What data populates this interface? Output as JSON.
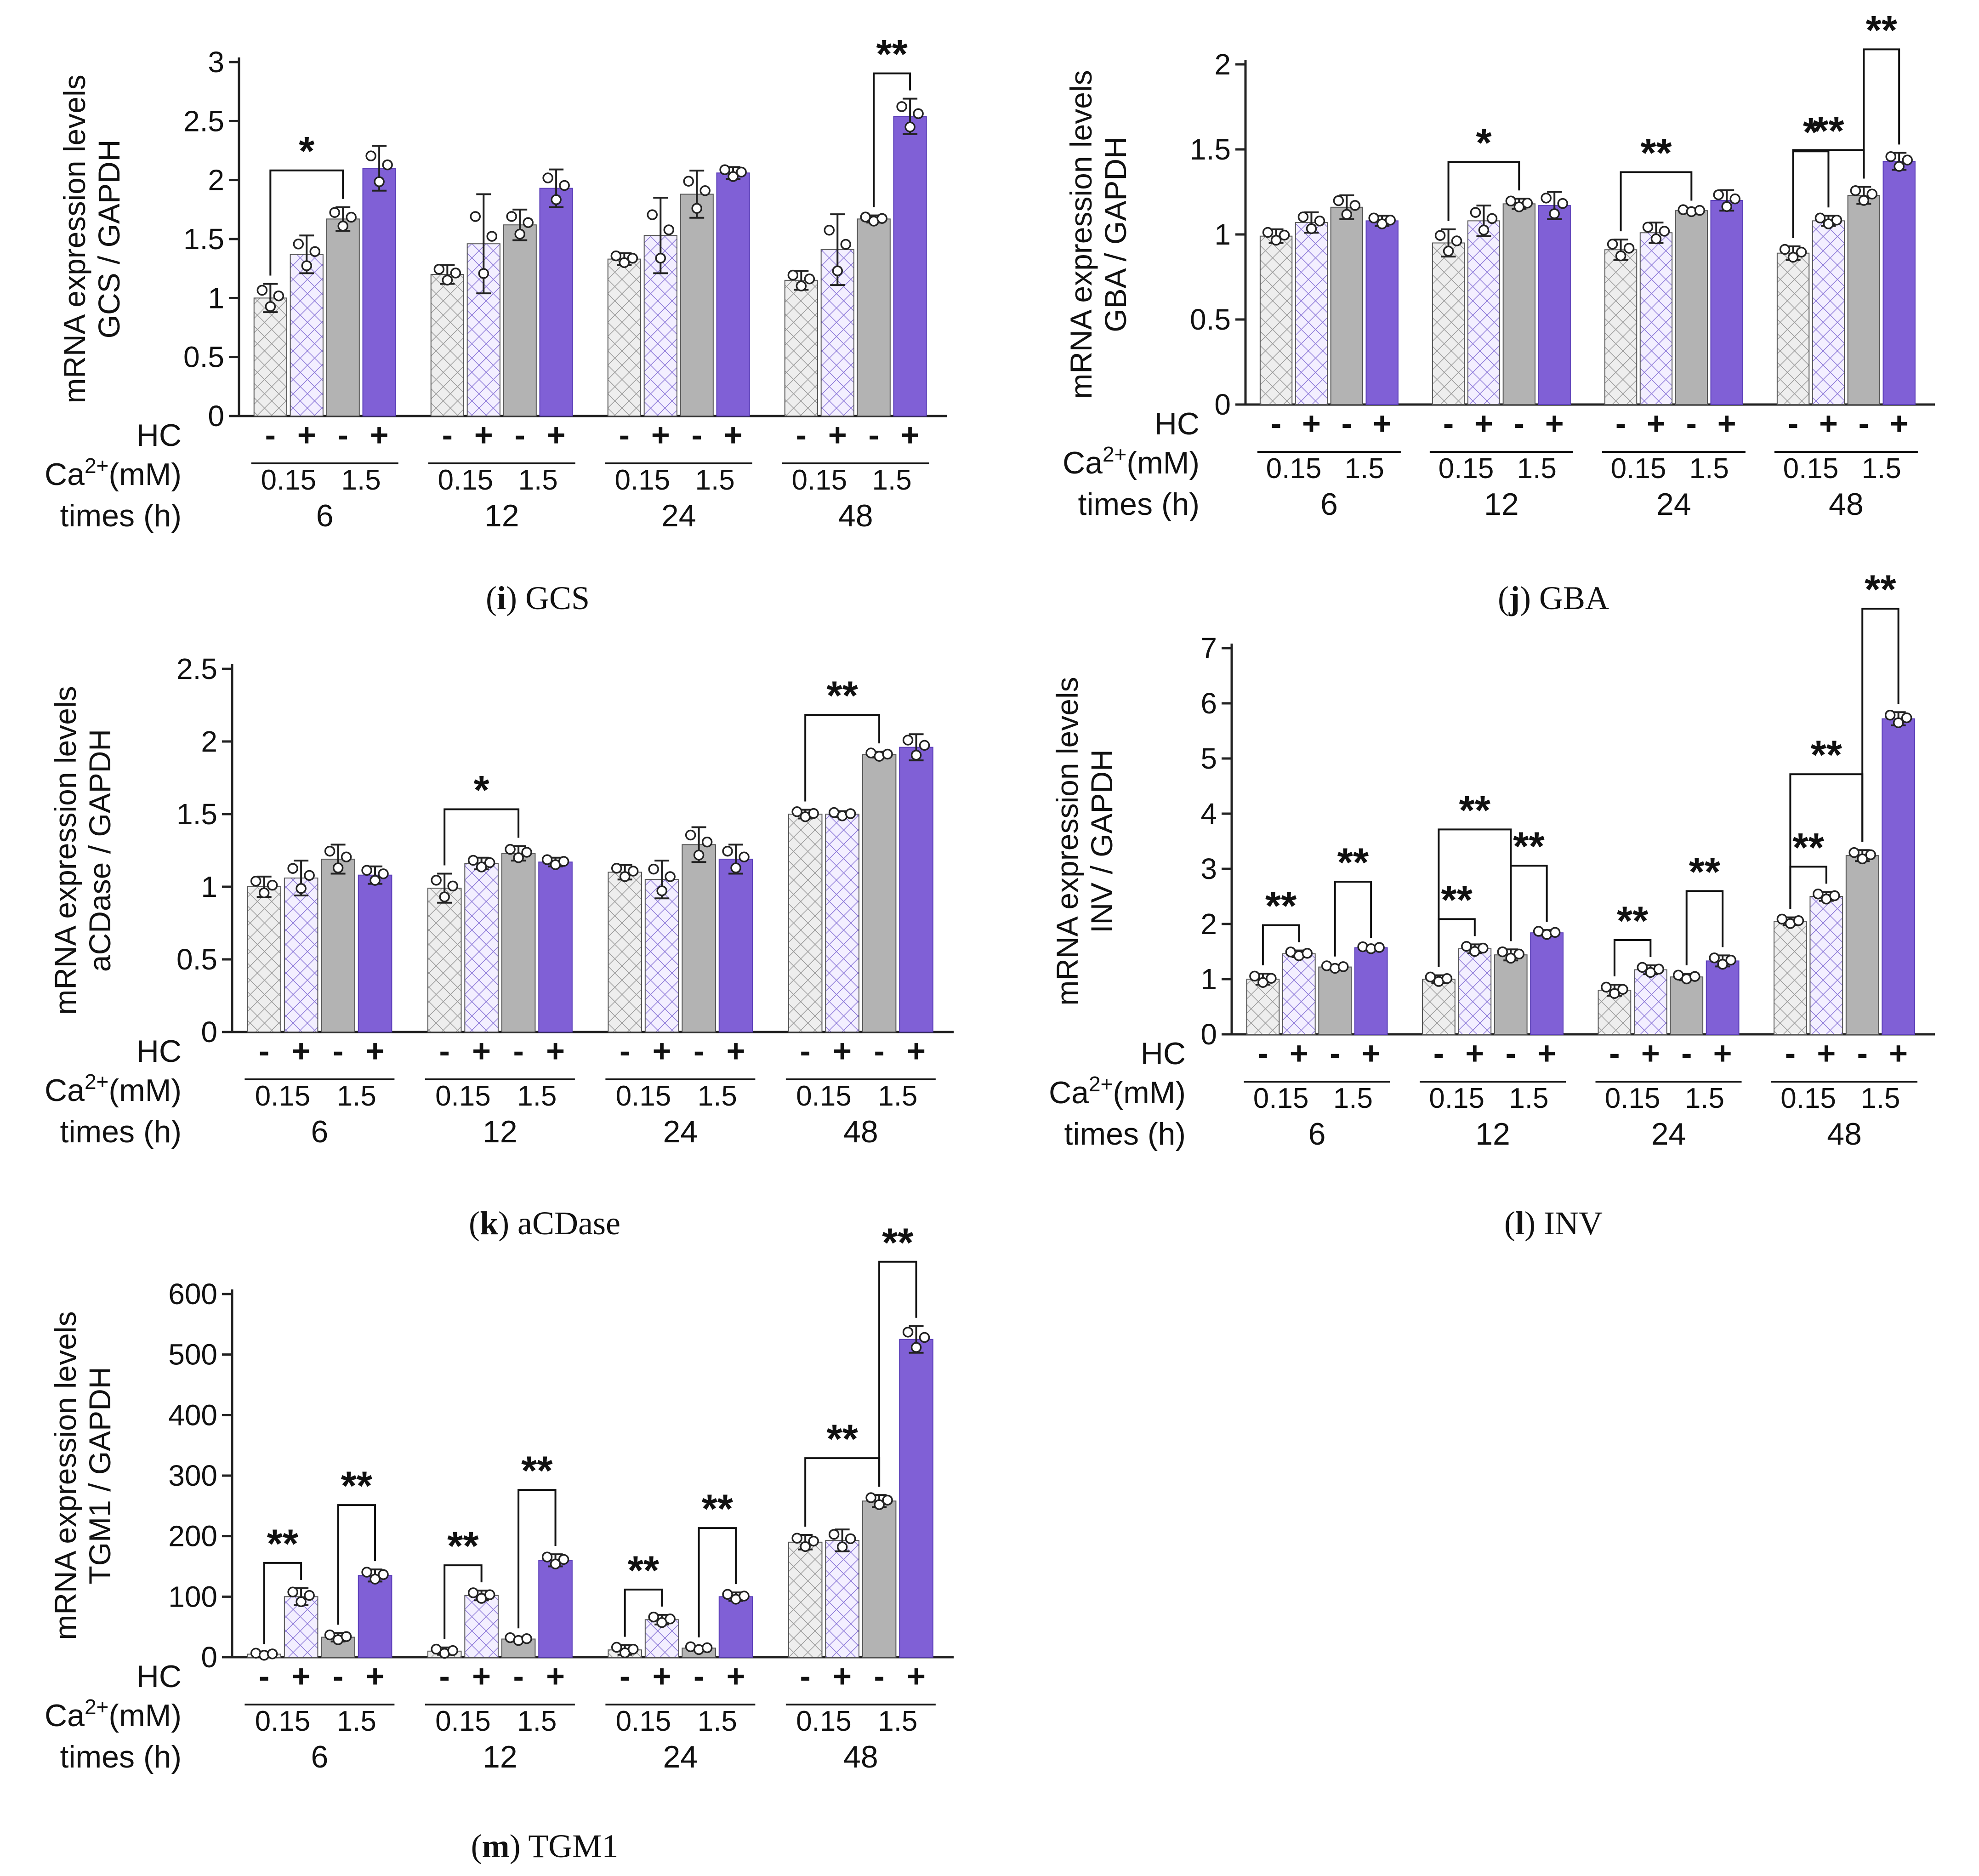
{
  "colors": {
    "hc_minus_low": "#e8e8e8",
    "hc_plus_low": "#ece6fb",
    "hc_minus_high": "#b3b3b3",
    "hc_plus_high": "#8060d6",
    "axis": "#222222",
    "hatch_low": "#9a9a9a",
    "hatch_plus": "#8c78d8"
  },
  "row_labels": {
    "hc": "HC",
    "ca_prefix": "Ca",
    "ca_sup": "2+",
    "ca_suffix": "(mM)",
    "times": "times (h)"
  },
  "conditions": [
    "HC- 0.15",
    "HC+ 0.15",
    "HC- 1.5",
    "HC+ 1.5"
  ],
  "chart_data": [
    {
      "id": "i",
      "caption_letter": "i",
      "caption_text": "GCS",
      "type": "bar",
      "ylabel_line1": "mRNA expression levels",
      "ylabel_line2": "GCS / GAPDH",
      "ylim": [
        0,
        3
      ],
      "yticks": [
        "0",
        "0.5",
        "1",
        "1.5",
        "2",
        "2.5",
        "3"
      ],
      "times": [
        "6",
        "12",
        "24",
        "48"
      ],
      "hc_signs": [
        "-",
        "+",
        "-",
        "+"
      ],
      "ca_levels": [
        "0.15",
        "1.5"
      ],
      "series": [
        {
          "name": "HC- 0.15 mM",
          "values": [
            1.0,
            1.2,
            1.33,
            1.15
          ],
          "err": [
            0.12,
            0.08,
            0.05,
            0.08
          ]
        },
        {
          "name": "HC+ 0.15 mM",
          "values": [
            1.37,
            1.46,
            1.53,
            1.41
          ],
          "err": [
            0.16,
            0.42,
            0.32,
            0.3
          ]
        },
        {
          "name": "HC- 1.5 mM",
          "values": [
            1.67,
            1.62,
            1.88,
            1.67
          ],
          "err": [
            0.1,
            0.13,
            0.2,
            0.03
          ]
        },
        {
          "name": "HC+ 1.5 mM",
          "values": [
            2.1,
            1.93,
            2.06,
            2.54
          ],
          "err": [
            0.19,
            0.16,
            0.05,
            0.15
          ]
        }
      ],
      "significance": [
        {
          "time": 0,
          "from": 0,
          "to": 2,
          "label": "*"
        },
        {
          "time": 3,
          "from": 2,
          "to": 3,
          "label": "**"
        }
      ]
    },
    {
      "id": "j",
      "caption_letter": "j",
      "caption_text": "GBA",
      "type": "bar",
      "ylabel_line1": "mRNA expression levels",
      "ylabel_line2": "GBA / GAPDH",
      "ylim": [
        0,
        2
      ],
      "yticks": [
        "0",
        "0.5",
        "1",
        "1.5",
        "2"
      ],
      "times": [
        "6",
        "12",
        "24",
        "48"
      ],
      "hc_signs": [
        "-",
        "+",
        "-",
        "+"
      ],
      "ca_levels": [
        "0.15",
        "1.5"
      ],
      "series": [
        {
          "name": "HC- 0.15 mM",
          "values": [
            0.99,
            0.95,
            0.91,
            0.89
          ],
          "err": [
            0.04,
            0.08,
            0.06,
            0.04
          ]
        },
        {
          "name": "HC+ 0.15 mM",
          "values": [
            1.07,
            1.08,
            1.01,
            1.08
          ],
          "err": [
            0.06,
            0.09,
            0.06,
            0.03
          ]
        },
        {
          "name": "HC- 1.5 mM",
          "values": [
            1.16,
            1.18,
            1.14,
            1.23
          ],
          "err": [
            0.07,
            0.03,
            0.01,
            0.05
          ]
        },
        {
          "name": "HC+ 1.5 mM",
          "values": [
            1.08,
            1.17,
            1.2,
            1.43
          ],
          "err": [
            0.03,
            0.08,
            0.06,
            0.05
          ]
        }
      ],
      "significance": [
        {
          "time": 1,
          "from": 0,
          "to": 2,
          "label": "*"
        },
        {
          "time": 2,
          "from": 0,
          "to": 2,
          "label": "**"
        },
        {
          "time": 3,
          "from": 0,
          "to": 2,
          "label": "**"
        },
        {
          "time": 3,
          "from": 0,
          "to": 1,
          "label": "*"
        },
        {
          "time": 3,
          "from": 2,
          "to": 3,
          "label": "**"
        }
      ]
    },
    {
      "id": "k",
      "caption_letter": "k",
      "caption_text": "aCDase",
      "type": "bar",
      "ylabel_line1": "mRNA expression levels",
      "ylabel_line2": "aCDase / GAPDH",
      "ylim": [
        0,
        2.5
      ],
      "yticks": [
        "0",
        "0.5",
        "1",
        "1.5",
        "2",
        "2.5"
      ],
      "times": [
        "6",
        "12",
        "24",
        "48"
      ],
      "hc_signs": [
        "-",
        "+",
        "-",
        "+"
      ],
      "ca_levels": [
        "0.15",
        "1.5"
      ],
      "series": [
        {
          "name": "HC- 0.15 mM",
          "values": [
            1.0,
            0.99,
            1.1,
            1.5
          ],
          "err": [
            0.07,
            0.1,
            0.05,
            0.03
          ]
        },
        {
          "name": "HC+ 0.15 mM",
          "values": [
            1.06,
            1.16,
            1.05,
            1.5
          ],
          "err": [
            0.12,
            0.04,
            0.13,
            0.02
          ]
        },
        {
          "name": "HC- 1.5 mM",
          "values": [
            1.19,
            1.23,
            1.29,
            1.91
          ],
          "err": [
            0.1,
            0.05,
            0.12,
            0.02
          ]
        },
        {
          "name": "HC+ 1.5 mM",
          "values": [
            1.08,
            1.17,
            1.19,
            1.96
          ],
          "err": [
            0.06,
            0.03,
            0.1,
            0.09
          ]
        }
      ],
      "significance": [
        {
          "time": 1,
          "from": 0,
          "to": 2,
          "label": "*"
        },
        {
          "time": 3,
          "from": 0,
          "to": 2,
          "label": "**"
        }
      ]
    },
    {
      "id": "l",
      "caption_letter": "l",
      "caption_text": "INV",
      "type": "bar",
      "ylabel_line1": "mRNA expression levels",
      "ylabel_line2": "INV / GAPDH",
      "ylim": [
        0,
        7
      ],
      "yticks": [
        "0",
        "1",
        "2",
        "3",
        "4",
        "5",
        "6",
        "7"
      ],
      "times": [
        "6",
        "12",
        "24",
        "48"
      ],
      "hc_signs": [
        "-",
        "+",
        "-",
        "+"
      ],
      "ca_levels": [
        "0.15",
        "1.5"
      ],
      "series": [
        {
          "name": "HC- 0.15 mM",
          "values": [
            1.0,
            1.0,
            0.8,
            2.05
          ],
          "err": [
            0.1,
            0.07,
            0.1,
            0.07
          ]
        },
        {
          "name": "HC+ 0.15 mM",
          "values": [
            1.46,
            1.55,
            1.17,
            2.5
          ],
          "err": [
            0.06,
            0.08,
            0.08,
            0.08
          ]
        },
        {
          "name": "HC- 1.5 mM",
          "values": [
            1.22,
            1.44,
            1.04,
            3.24
          ],
          "err": [
            0.04,
            0.1,
            0.06,
            0.1
          ]
        },
        {
          "name": "HC+ 1.5 mM",
          "values": [
            1.57,
            1.84,
            1.33,
            5.72
          ],
          "err": [
            0.03,
            0.05,
            0.1,
            0.12
          ]
        }
      ],
      "significance": [
        {
          "time": 0,
          "from": 0,
          "to": 1,
          "label": "**"
        },
        {
          "time": 0,
          "from": 2,
          "to": 3,
          "label": "**"
        },
        {
          "time": 1,
          "from": 0,
          "to": 1,
          "label": "**"
        },
        {
          "time": 1,
          "from": 2,
          "to": 3,
          "label": "**"
        },
        {
          "time": 1,
          "from": 0,
          "to": 2,
          "label": "**"
        },
        {
          "time": 2,
          "from": 0,
          "to": 1,
          "label": "**"
        },
        {
          "time": 2,
          "from": 2,
          "to": 3,
          "label": "**"
        },
        {
          "time": 3,
          "from": 0,
          "to": 1,
          "label": "**"
        },
        {
          "time": 3,
          "from": 0,
          "to": 2,
          "label": "**"
        },
        {
          "time": 3,
          "from": 2,
          "to": 3,
          "label": "**"
        }
      ]
    },
    {
      "id": "m",
      "caption_letter": "m",
      "caption_text": "TGM1",
      "type": "bar",
      "ylabel_line1": "mRNA expression levels",
      "ylabel_line2": "TGM1 / GAPDH",
      "ylim": [
        0,
        600
      ],
      "yticks": [
        "0",
        "100",
        "200",
        "300",
        "400",
        "500",
        "600"
      ],
      "times": [
        "6",
        "12",
        "24",
        "48"
      ],
      "hc_signs": [
        "-",
        "+",
        "-",
        "+"
      ],
      "ca_levels": [
        "0.15",
        "1.5"
      ],
      "series": [
        {
          "name": "HC- 0.15 mM",
          "values": [
            5,
            10,
            12,
            190
          ],
          "err": [
            3,
            6,
            8,
            12
          ]
        },
        {
          "name": "HC+ 0.15 mM",
          "values": [
            100,
            102,
            62,
            193
          ],
          "err": [
            14,
            8,
            8,
            18
          ]
        },
        {
          "name": "HC- 1.5 mM",
          "values": [
            33,
            30,
            15,
            258
          ],
          "err": [
            7,
            4,
            4,
            10
          ]
        },
        {
          "name": "HC+ 1.5 mM",
          "values": [
            135,
            160,
            100,
            525
          ],
          "err": [
            10,
            10,
            7,
            22
          ]
        }
      ],
      "significance": [
        {
          "time": 0,
          "from": 0,
          "to": 1,
          "label": "**"
        },
        {
          "time": 0,
          "from": 2,
          "to": 3,
          "label": "**"
        },
        {
          "time": 1,
          "from": 0,
          "to": 1,
          "label": "**"
        },
        {
          "time": 1,
          "from": 2,
          "to": 3,
          "label": "**"
        },
        {
          "time": 2,
          "from": 0,
          "to": 1,
          "label": "**"
        },
        {
          "time": 2,
          "from": 2,
          "to": 3,
          "label": "**"
        },
        {
          "time": 3,
          "from": 0,
          "to": 2,
          "label": "**"
        },
        {
          "time": 3,
          "from": 2,
          "to": 3,
          "label": "**"
        }
      ]
    }
  ]
}
